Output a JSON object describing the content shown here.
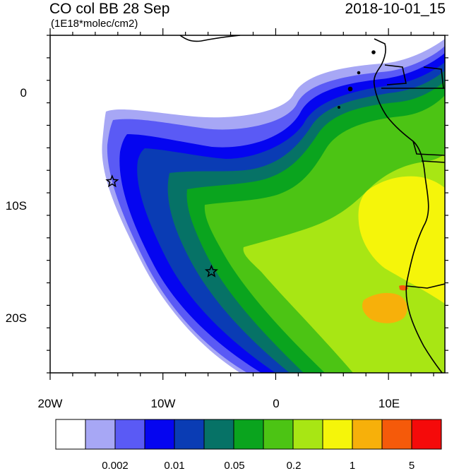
{
  "title": "CO col BB 28 Sep",
  "timestamp": "2018-10-01_15",
  "units": "(1E18*molec/cm2)",
  "lon_labels": [
    "20W",
    "10W",
    "0",
    "10E"
  ],
  "lat_labels": [
    "0",
    "10S",
    "20S"
  ],
  "colorbar": {
    "colors": [
      "#ffffff",
      "#a7a7f5",
      "#5a5af5",
      "#0505f0",
      "#0a3cb4",
      "#067266",
      "#0aa41e",
      "#4cc414",
      "#a8e614",
      "#f5f50a",
      "#f7b00a",
      "#f55a0a",
      "#f50a0a"
    ],
    "labels": [
      "0.002",
      "0.01",
      "0.05",
      "0.2",
      "1",
      "5"
    ]
  },
  "markers": [
    {
      "name": "star",
      "lon": -14.5,
      "lat": -8
    },
    {
      "name": "star",
      "lon": -5.7,
      "lat": -16
    }
  ],
  "map": {
    "lon_range": [
      -20,
      15
    ],
    "lat_range": [
      -25,
      5
    ],
    "contour_field": "CO column from biomass burning",
    "coastline": "West/Southern Africa"
  }
}
